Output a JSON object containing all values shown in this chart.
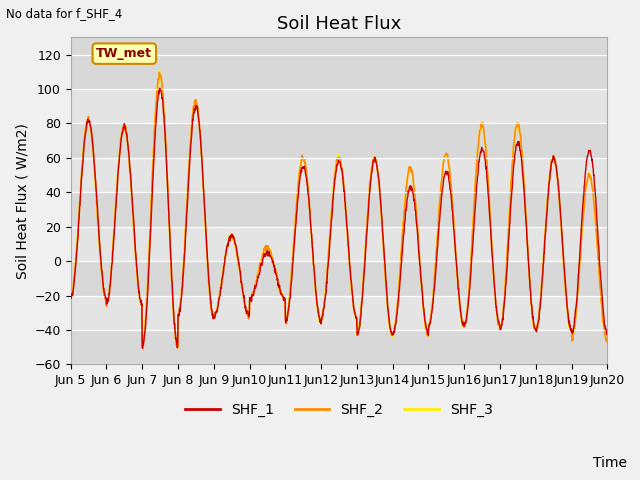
{
  "title": "Soil Heat Flux",
  "ylabel": "Soil Heat Flux (W/m2)",
  "xlabel": "Time",
  "no_data_text": "No data for f_SHF_4",
  "legend_label": "TW_met",
  "ylim": [
    -60,
    130
  ],
  "yticks": [
    -60,
    -40,
    -20,
    0,
    20,
    40,
    60,
    80,
    100,
    120
  ],
  "series_names": [
    "SHF_1",
    "SHF_2",
    "SHF_3"
  ],
  "colors": [
    "#cc0000",
    "#ff8c00",
    "#ffee00"
  ],
  "title_fontsize": 13,
  "axis_fontsize": 10,
  "tick_fontsize": 9,
  "days": [
    "Jun 5",
    "Jun 6",
    "Jun 7",
    "Jun 8",
    "Jun 9",
    "Jun 10",
    "Jun 11",
    "Jun 12",
    "Jun 13",
    "Jun 14",
    "Jun 15",
    "Jun 16",
    "Jun 17",
    "Jun 18",
    "Jun 19",
    "Jun 20"
  ],
  "n_days": 15,
  "amp1": [
    82,
    78,
    100,
    90,
    15,
    5,
    55,
    58,
    59,
    43,
    52,
    65,
    69,
    60,
    64
  ],
  "amp2": [
    82,
    78,
    108,
    93,
    15,
    8,
    60,
    61,
    60,
    54,
    62,
    79,
    80,
    60,
    50
  ],
  "amp3": [
    82,
    78,
    108,
    93,
    15,
    8,
    60,
    61,
    60,
    54,
    62,
    79,
    80,
    60,
    50
  ],
  "trough1": [
    -22,
    -25,
    -50,
    -32,
    -32,
    -22,
    -35,
    -33,
    -43,
    -42,
    -38,
    -37,
    -40,
    -40,
    -42
  ],
  "trough2": [
    -22,
    -25,
    -50,
    -32,
    -32,
    -22,
    -35,
    -33,
    -43,
    -43,
    -38,
    -38,
    -40,
    -40,
    -46
  ],
  "trough3": [
    -22,
    -25,
    -50,
    -32,
    -32,
    -22,
    -35,
    -33,
    -43,
    -43,
    -38,
    -38,
    -40,
    -40,
    -46
  ],
  "band_colors": [
    "#d8d8d8",
    "#e4e4e4"
  ]
}
